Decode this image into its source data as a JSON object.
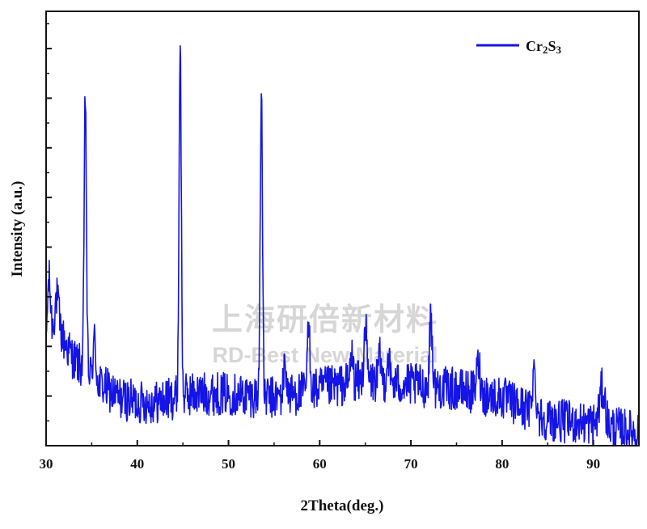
{
  "chart_data": {
    "type": "line",
    "title": "",
    "xlabel": "2Theta(deg.)",
    "ylabel": "Intensity (a.u.)",
    "xlim": [
      30,
      95
    ],
    "ylim": [
      0,
      100
    ],
    "x_ticks": [
      30,
      40,
      50,
      60,
      70,
      80,
      90
    ],
    "y_tick_labels_shown": false,
    "grid": false,
    "legend_position": "top-right",
    "series": [
      {
        "name": "Cr2S3",
        "legend_label_parts": [
          {
            "text": "Cr",
            "sub": false
          },
          {
            "text": "2",
            "sub": true
          },
          {
            "text": "S",
            "sub": false
          },
          {
            "text": "3",
            "sub": true
          }
        ],
        "color": "#1414e6",
        "baseline": [
          [
            30,
            20
          ],
          [
            31,
            29
          ],
          [
            32,
            24
          ],
          [
            33,
            20
          ],
          [
            34,
            18
          ],
          [
            36,
            14
          ],
          [
            38,
            11
          ],
          [
            40,
            10
          ],
          [
            42,
            10
          ],
          [
            44,
            11
          ],
          [
            46,
            12
          ],
          [
            50,
            12
          ],
          [
            55,
            11
          ],
          [
            60,
            13
          ],
          [
            65,
            15
          ],
          [
            70,
            14
          ],
          [
            75,
            13
          ],
          [
            80,
            11
          ],
          [
            85,
            6
          ],
          [
            90,
            5
          ],
          [
            95,
            3
          ]
        ],
        "peaks": [
          {
            "x": 30.3,
            "y": 38,
            "w": 0.18
          },
          {
            "x": 31.2,
            "y": 34,
            "w": 0.2
          },
          {
            "x": 34.3,
            "y": 81,
            "w": 0.12
          },
          {
            "x": 35.3,
            "y": 24,
            "w": 0.15
          },
          {
            "x": 44.7,
            "y": 93,
            "w": 0.12
          },
          {
            "x": 53.6,
            "y": 83,
            "w": 0.12
          },
          {
            "x": 56.2,
            "y": 19,
            "w": 0.15
          },
          {
            "x": 58.8,
            "y": 27,
            "w": 0.15
          },
          {
            "x": 63.5,
            "y": 21,
            "w": 0.15
          },
          {
            "x": 65.0,
            "y": 28,
            "w": 0.15
          },
          {
            "x": 66.6,
            "y": 20,
            "w": 0.15
          },
          {
            "x": 67.5,
            "y": 21,
            "w": 0.15
          },
          {
            "x": 72.2,
            "y": 30,
            "w": 0.15
          },
          {
            "x": 77.4,
            "y": 19,
            "w": 0.2
          },
          {
            "x": 83.5,
            "y": 17,
            "w": 0.2
          },
          {
            "x": 91.0,
            "y": 13,
            "w": 0.3
          }
        ],
        "noise_amplitude": 5,
        "sample_step": 0.05
      }
    ],
    "watermark": {
      "line1": "上海研倍新材料",
      "line2": "RD-Best New Material"
    }
  }
}
